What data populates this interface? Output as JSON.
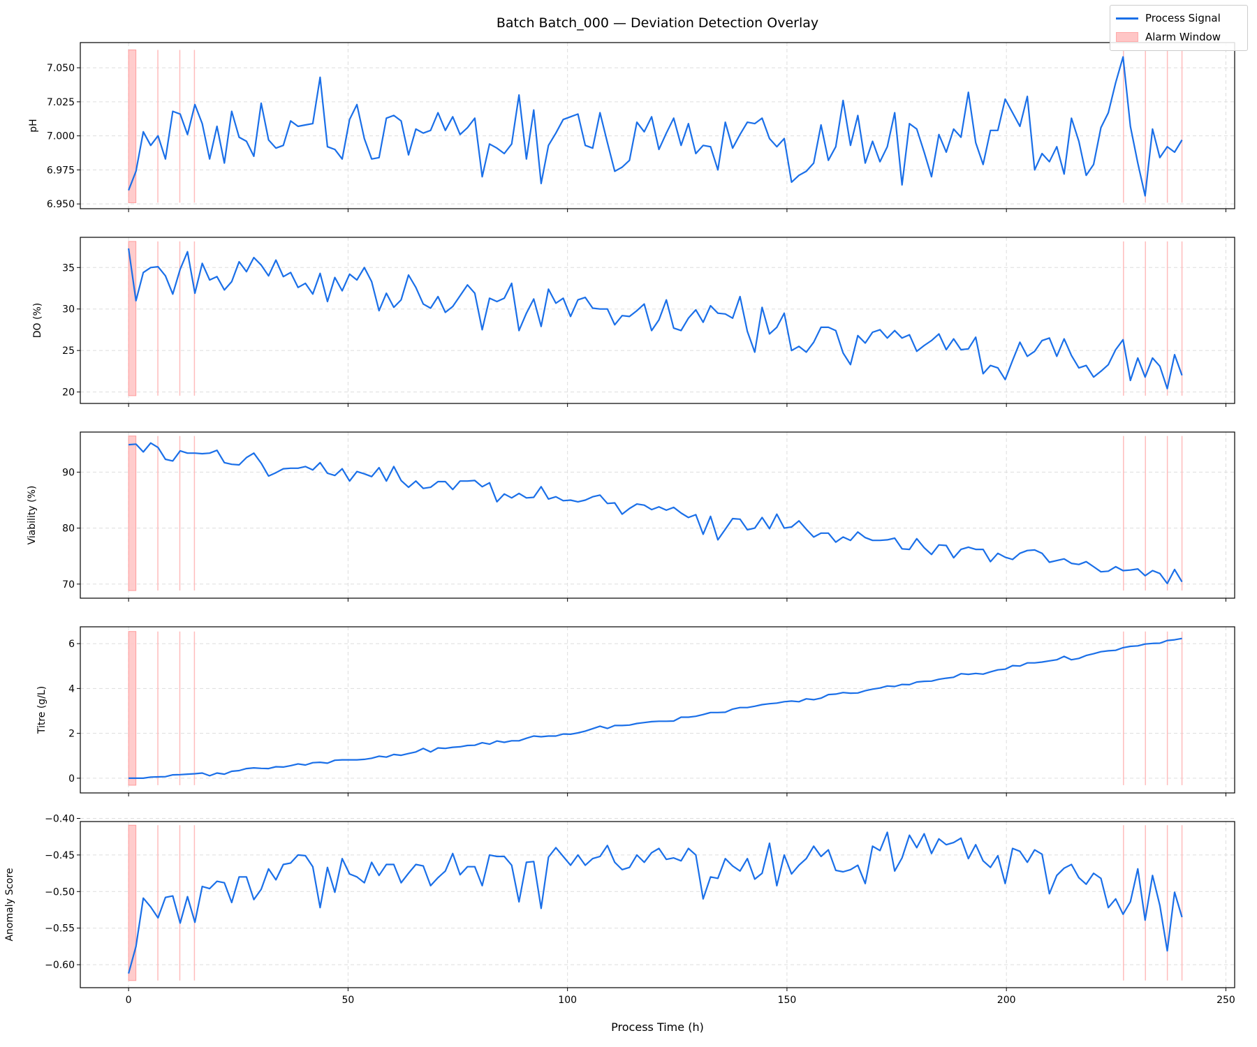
{
  "title": "Batch Batch_000 — Deviation Detection Overlay",
  "xlabel": "Process Time (h)",
  "legend": {
    "placement": "top-right",
    "items": [
      {
        "label": "Process Signal",
        "type": "line",
        "color": "#1a6fe8"
      },
      {
        "label": "Alarm Window",
        "type": "patch",
        "color": "#ffc6c6"
      }
    ]
  },
  "colors": {
    "signal": "#1a6fe8",
    "alarm_fill": "#ffc6c6",
    "alarm_line": "#ffbcbc",
    "grid": "#dddddd"
  },
  "chart_data": [
    {
      "type": "line",
      "ylabel": "pH",
      "xlim": [
        -11,
        252
      ],
      "ylim": [
        6.9465,
        7.0685
      ],
      "x_range": [
        0,
        240
      ],
      "xticks": [
        0,
        50,
        100,
        150,
        200,
        250
      ],
      "yticks": [
        6.95,
        6.975,
        7.0,
        7.025,
        7.05
      ],
      "ytick_labels": [
        "6.950",
        "6.975",
        "7.000",
        "7.025",
        "7.050"
      ],
      "values": [
        6.96,
        6.974,
        7.003,
        6.993,
        7.0,
        6.983,
        7.018,
        7.016,
        7.001,
        7.023,
        7.009,
        6.983,
        7.007,
        6.98,
        7.018,
        6.999,
        6.996,
        6.985,
        7.024,
        6.997,
        6.991,
        6.993,
        7.011,
        7.007,
        7.008,
        7.009,
        7.043,
        6.992,
        6.99,
        6.983,
        7.012,
        7.023,
        6.998,
        6.983,
        6.984,
        7.013,
        7.015,
        7.011,
        6.986,
        7.005,
        7.002,
        7.004,
        7.017,
        7.004,
        7.014,
        7.001,
        7.006,
        7.013,
        6.97,
        6.994,
        6.991,
        6.987,
        6.994,
        7.03,
        6.983,
        7.019,
        6.965,
        6.993,
        7.002,
        7.012,
        7.014,
        7.016,
        6.993,
        6.991,
        7.017,
        6.995,
        6.974,
        6.977,
        6.982,
        7.01,
        7.003,
        7.014,
        6.99,
        7.002,
        7.013,
        6.993,
        7.009,
        6.987,
        6.993,
        6.992,
        6.975,
        7.01,
        6.991,
        7.001,
        7.01,
        7.009,
        7.013,
        6.998,
        6.992,
        6.998,
        6.966,
        6.971,
        6.974,
        6.98,
        7.008,
        6.982,
        6.992,
        7.026,
        6.993,
        7.015,
        6.98,
        6.996,
        6.981,
        6.992,
        7.017,
        6.964,
        7.009,
        7.005,
        6.988,
        6.97,
        7.001,
        6.988,
        7.005,
        6.999,
        7.032,
        6.995,
        6.979,
        7.004,
        7.004,
        7.027,
        7.017,
        7.007,
        7.029,
        6.975,
        6.987,
        6.981,
        6.992,
        6.972,
        7.013,
        6.996,
        6.971,
        6.979,
        7.006,
        7.017,
        7.039,
        7.058,
        7.007,
        6.98,
        6.956,
        7.005,
        6.984,
        6.992,
        6.988,
        6.997
      ]
    },
    {
      "type": "line",
      "ylabel": "DO (%)",
      "xlim": [
        -11,
        252
      ],
      "ylim": [
        18.62,
        38.64
      ],
      "x_range": [
        0,
        240
      ],
      "xticks": [
        0,
        50,
        100,
        150,
        200,
        250
      ],
      "yticks": [
        20,
        25,
        30,
        35
      ],
      "ytick_labels": [
        "20",
        "25",
        "30",
        "35"
      ],
      "values": [
        37.3,
        31.0,
        34.4,
        35.0,
        35.1,
        34.0,
        31.8,
        34.8,
        36.9,
        31.9,
        35.5,
        33.5,
        33.9,
        32.3,
        33.3,
        35.7,
        34.5,
        36.2,
        35.3,
        34.0,
        35.9,
        33.9,
        34.4,
        32.6,
        33.1,
        31.8,
        34.3,
        30.9,
        33.8,
        32.2,
        34.2,
        33.5,
        35.0,
        33.3,
        29.8,
        31.9,
        30.2,
        31.1,
        34.1,
        32.6,
        30.6,
        30.1,
        31.5,
        29.6,
        30.3,
        31.6,
        32.9,
        31.9,
        27.5,
        31.3,
        30.9,
        31.3,
        33.1,
        27.4,
        29.5,
        31.2,
        27.9,
        32.4,
        30.7,
        31.3,
        29.1,
        31.1,
        31.4,
        30.1,
        30.0,
        30.0,
        28.1,
        29.2,
        29.1,
        29.8,
        30.6,
        27.4,
        28.7,
        31.1,
        27.7,
        27.4,
        28.9,
        29.9,
        28.4,
        30.4,
        29.5,
        29.4,
        28.9,
        31.5,
        27.3,
        24.8,
        30.2,
        27.0,
        27.8,
        29.5,
        25.0,
        25.5,
        24.8,
        26.0,
        27.8,
        27.8,
        27.4,
        24.7,
        23.3,
        26.8,
        25.9,
        27.2,
        27.5,
        26.5,
        27.4,
        26.5,
        26.9,
        24.9,
        25.6,
        26.2,
        27.0,
        25.1,
        26.4,
        25.1,
        25.2,
        26.6,
        22.2,
        23.2,
        22.9,
        21.5,
        23.8,
        26.0,
        24.3,
        24.9,
        26.2,
        26.5,
        24.3,
        26.4,
        24.4,
        22.9,
        23.2,
        21.8,
        22.5,
        23.3,
        25.1,
        26.3,
        21.4,
        24.1,
        21.8,
        24.1,
        23.1,
        20.4,
        24.5,
        22.0
      ]
    },
    {
      "type": "line",
      "ylabel": "Viability (%)",
      "xlim": [
        -11,
        252
      ],
      "ylim": [
        67.48,
        97.16
      ],
      "x_range": [
        0,
        240
      ],
      "xticks": [
        0,
        50,
        100,
        150,
        200,
        250
      ],
      "yticks": [
        70,
        80,
        90
      ],
      "ytick_labels": [
        "70",
        "80",
        "90"
      ],
      "values": [
        94.9,
        95.0,
        93.6,
        95.2,
        94.4,
        92.3,
        92.0,
        93.8,
        93.4,
        93.4,
        93.3,
        93.4,
        93.9,
        91.7,
        91.4,
        91.3,
        92.6,
        93.4,
        91.6,
        89.3,
        89.9,
        90.6,
        90.7,
        90.7,
        91.0,
        90.4,
        91.7,
        89.8,
        89.4,
        90.6,
        88.4,
        90.1,
        89.7,
        89.2,
        90.8,
        88.4,
        91.0,
        88.5,
        87.3,
        88.4,
        87.1,
        87.3,
        88.3,
        88.3,
        86.9,
        88.4,
        88.4,
        88.5,
        87.4,
        88.1,
        84.7,
        86.1,
        85.4,
        86.2,
        85.4,
        85.5,
        87.4,
        85.2,
        85.6,
        84.9,
        85.0,
        84.7,
        85.0,
        85.6,
        85.9,
        84.4,
        84.5,
        82.5,
        83.5,
        84.3,
        84.1,
        83.3,
        83.8,
        83.2,
        83.7,
        82.7,
        81.9,
        82.4,
        78.9,
        82.1,
        77.9,
        79.8,
        81.7,
        81.6,
        79.7,
        80.0,
        81.9,
        79.9,
        82.5,
        80.0,
        80.2,
        81.3,
        79.8,
        78.4,
        79.1,
        79.1,
        77.5,
        78.4,
        77.8,
        79.3,
        78.3,
        77.8,
        77.8,
        77.9,
        78.2,
        76.3,
        76.2,
        78.1,
        76.5,
        75.3,
        77.0,
        76.9,
        74.7,
        76.2,
        76.6,
        76.2,
        76.2,
        74.0,
        75.5,
        74.8,
        74.4,
        75.5,
        76.0,
        76.1,
        75.5,
        73.9,
        74.2,
        74.5,
        73.7,
        73.5,
        74.0,
        73.1,
        72.2,
        72.3,
        73.1,
        72.4,
        72.5,
        72.7,
        71.5,
        72.4,
        71.9,
        70.1,
        72.6,
        70.4
      ]
    },
    {
      "type": "line",
      "ylabel": "Titre (g/L)",
      "xlim": [
        -11,
        252
      ],
      "ylim": [
        -0.656,
        6.75
      ],
      "x_range": [
        0,
        240
      ],
      "xticks": [
        0,
        50,
        100,
        150,
        200,
        250
      ],
      "yticks": [
        0,
        2,
        4,
        6
      ],
      "ytick_labels": [
        "0",
        "2",
        "4",
        "6"
      ],
      "values": [
        0.0,
        0.0,
        0.0,
        0.05,
        0.06,
        0.07,
        0.15,
        0.16,
        0.18,
        0.2,
        0.23,
        0.11,
        0.23,
        0.18,
        0.31,
        0.34,
        0.43,
        0.46,
        0.44,
        0.43,
        0.51,
        0.5,
        0.56,
        0.64,
        0.59,
        0.69,
        0.71,
        0.67,
        0.8,
        0.82,
        0.82,
        0.82,
        0.84,
        0.89,
        0.98,
        0.94,
        1.06,
        1.02,
        1.1,
        1.17,
        1.33,
        1.17,
        1.35,
        1.33,
        1.38,
        1.4,
        1.46,
        1.47,
        1.58,
        1.52,
        1.66,
        1.6,
        1.67,
        1.67,
        1.78,
        1.88,
        1.85,
        1.88,
        1.88,
        1.97,
        1.96,
        2.02,
        2.1,
        2.21,
        2.32,
        2.22,
        2.35,
        2.35,
        2.37,
        2.44,
        2.48,
        2.52,
        2.54,
        2.54,
        2.55,
        2.72,
        2.72,
        2.76,
        2.84,
        2.93,
        2.93,
        2.94,
        3.08,
        3.15,
        3.15,
        3.21,
        3.28,
        3.32,
        3.35,
        3.41,
        3.44,
        3.41,
        3.54,
        3.5,
        3.57,
        3.73,
        3.75,
        3.82,
        3.79,
        3.8,
        3.9,
        3.97,
        4.02,
        4.11,
        4.09,
        4.18,
        4.17,
        4.29,
        4.32,
        4.33,
        4.41,
        4.46,
        4.5,
        4.66,
        4.63,
        4.67,
        4.64,
        4.74,
        4.83,
        4.86,
        5.02,
        5.0,
        5.14,
        5.14,
        5.18,
        5.23,
        5.28,
        5.43,
        5.28,
        5.34,
        5.47,
        5.55,
        5.64,
        5.68,
        5.7,
        5.82,
        5.88,
        5.9,
        5.98,
        6.01,
        6.02,
        6.14,
        6.17,
        6.23
      ]
    },
    {
      "type": "line",
      "ylabel": "Anomaly Score",
      "xlim": [
        -11,
        252
      ],
      "ylim": [
        -0.6314,
        -0.4043
      ],
      "x_range": [
        0,
        240
      ],
      "xticks": [
        0,
        50,
        100,
        150,
        200,
        250
      ],
      "yticks": [
        -0.6,
        -0.55,
        -0.5,
        -0.45,
        -0.4
      ],
      "ytick_labels": [
        "−0.60",
        "−0.55",
        "−0.50",
        "−0.45",
        "−0.40"
      ],
      "values": [
        -0.612,
        -0.575,
        -0.509,
        -0.521,
        -0.536,
        -0.508,
        -0.506,
        -0.543,
        -0.507,
        -0.542,
        -0.493,
        -0.496,
        -0.486,
        -0.488,
        -0.515,
        -0.48,
        -0.48,
        -0.511,
        -0.497,
        -0.469,
        -0.484,
        -0.463,
        -0.461,
        -0.45,
        -0.451,
        -0.466,
        -0.522,
        -0.467,
        -0.501,
        -0.455,
        -0.476,
        -0.48,
        -0.488,
        -0.46,
        -0.478,
        -0.463,
        -0.463,
        -0.488,
        -0.475,
        -0.463,
        -0.465,
        -0.492,
        -0.481,
        -0.472,
        -0.448,
        -0.477,
        -0.466,
        -0.466,
        -0.492,
        -0.45,
        -0.452,
        -0.452,
        -0.464,
        -0.514,
        -0.46,
        -0.459,
        -0.523,
        -0.453,
        -0.44,
        -0.452,
        -0.464,
        -0.45,
        -0.464,
        -0.455,
        -0.452,
        -0.437,
        -0.46,
        -0.47,
        -0.467,
        -0.45,
        -0.46,
        -0.447,
        -0.441,
        -0.456,
        -0.454,
        -0.458,
        -0.441,
        -0.45,
        -0.51,
        -0.48,
        -0.482,
        -0.455,
        -0.465,
        -0.472,
        -0.455,
        -0.483,
        -0.475,
        -0.434,
        -0.492,
        -0.45,
        -0.476,
        -0.464,
        -0.455,
        -0.438,
        -0.452,
        -0.443,
        -0.471,
        -0.473,
        -0.47,
        -0.464,
        -0.489,
        -0.438,
        -0.444,
        -0.419,
        -0.472,
        -0.454,
        -0.423,
        -0.44,
        -0.421,
        -0.448,
        -0.428,
        -0.436,
        -0.433,
        -0.427,
        -0.455,
        -0.436,
        -0.458,
        -0.467,
        -0.451,
        -0.489,
        -0.441,
        -0.445,
        -0.46,
        -0.443,
        -0.449,
        -0.503,
        -0.478,
        -0.468,
        -0.463,
        -0.481,
        -0.49,
        -0.475,
        -0.482,
        -0.522,
        -0.51,
        -0.531,
        -0.514,
        -0.469,
        -0.539,
        -0.478,
        -0.519,
        -0.581,
        -0.501,
        -0.535
      ]
    }
  ],
  "alarms": {
    "window": [
      0,
      1.67
    ],
    "events": [
      6.67,
      11.67,
      15.0,
      226.67,
      231.67,
      236.67,
      240.0
    ]
  },
  "xtick_labels": [
    "0",
    "50",
    "100",
    "150",
    "200",
    "250"
  ]
}
